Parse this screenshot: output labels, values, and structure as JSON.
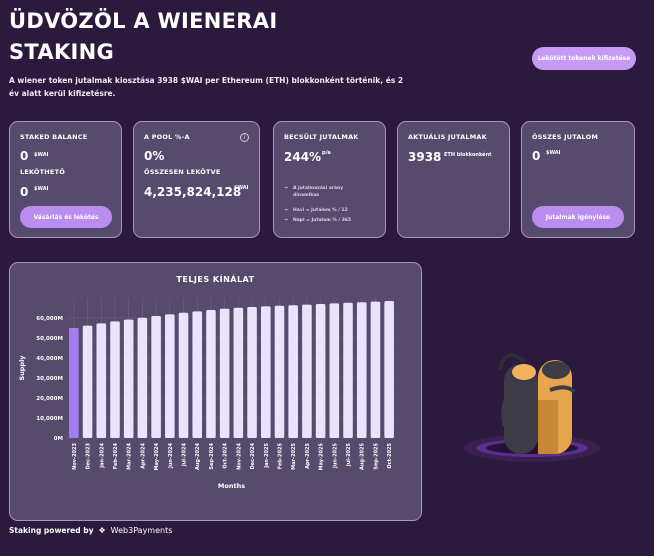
{
  "header": {
    "title": "ÜDVÖZÖL A WIENERAI STAKING",
    "subtitle": "A wiener token jutalmak kiosztása 3938 $WAI per Ethereum (ETH) blokkonként történik, és 2 év alatt kerül kifizetésre.",
    "top_button": "Lekötött tokenek kifizetése"
  },
  "cards": {
    "staked": {
      "label": "STAKED BALANCE",
      "value": "0",
      "unit": "$WAI",
      "label2": "LEKÖTHETŐ",
      "value2": "0",
      "unit2": "$WAI",
      "button": "Vásárlás és lekötés"
    },
    "pool": {
      "label": "A POOL %-A",
      "value": "0%",
      "label2": "ÖSSZESEN LEKÖTVE",
      "value2": "4,235,824,128",
      "unit2": "$WAI"
    },
    "estimated": {
      "label": "BECSÜLT JUTALMAK",
      "value": "244%",
      "unit": "p/a",
      "notes": [
        "A jutalmazási arány dinamikus",
        "Havi = Jutalom % / 12",
        "Napi = Jutalom % / 365"
      ]
    },
    "current": {
      "label": "AKTUÁLIS JUTALMAK",
      "value": "3938",
      "unit": "ETH blokkonként"
    },
    "total": {
      "label": "ÖSSZES JUTALOM",
      "value": "0",
      "unit": "$WAI",
      "button": "Jutalmak igénylése"
    }
  },
  "chart_data": {
    "type": "bar",
    "title": "TELJES KÍNÁLAT",
    "xlabel": "Months",
    "ylabel": "Supply",
    "ylim": [
      0,
      70000
    ],
    "yticks": [
      "0M",
      "10,000M",
      "20,000M",
      "30,000M",
      "40,000M",
      "50,000M",
      "60,000M"
    ],
    "categories": [
      "Nov-2023",
      "Dec-2023",
      "Jan-2024",
      "Feb-2024",
      "Mar-2024",
      "Apr-2024",
      "May-2024",
      "Jun-2024",
      "Jul-2024",
      "Aug-2024",
      "Sep-2024",
      "Oct-2024",
      "Nov-2024",
      "Dec-2024",
      "Jan-2025",
      "Feb-2025",
      "Mar-2025",
      "Apr-2025",
      "May-2025",
      "Jun-2025",
      "Jul-2025",
      "Aug-2025",
      "Sep-2025",
      "Oct-2025"
    ],
    "values": [
      55000,
      56200,
      57300,
      58300,
      59200,
      60100,
      61000,
      61800,
      62600,
      63300,
      64000,
      64600,
      65100,
      65500,
      65800,
      66100,
      66400,
      66700,
      67000,
      67300,
      67600,
      67900,
      68200,
      68500
    ],
    "highlight_index": 0,
    "colors": {
      "highlight": "#a47ef0",
      "bar": "#ebe2fb"
    },
    "grid": true
  },
  "footer": {
    "text": "Staking powered by",
    "brand": "Web3Payments"
  }
}
